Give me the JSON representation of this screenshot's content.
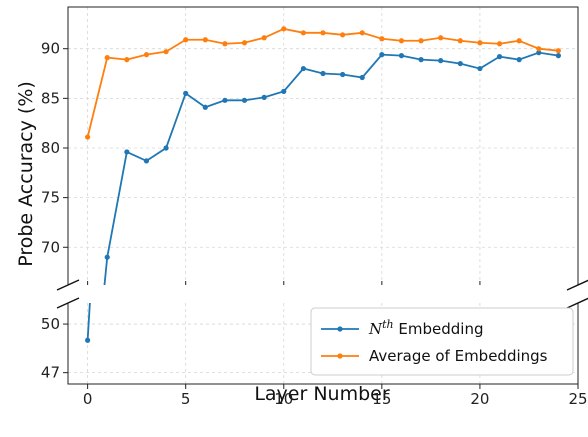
{
  "chart_data": {
    "type": "line",
    "xlabel": "Layer Number",
    "ylabel": "Probe Accuracy (%)",
    "xlim": [
      -1,
      25
    ],
    "xticks": [
      0,
      5,
      10,
      15,
      20,
      25
    ],
    "broken_axis": {
      "upper": {
        "ylim": [
          66.2,
          94.2
        ],
        "yticks": [
          70,
          75,
          80,
          85,
          90
        ]
      },
      "lower": {
        "ylim": [
          46.3,
          51.3
        ],
        "yticks": [
          47,
          50
        ]
      }
    },
    "grid": true,
    "legend_position": "lower-right",
    "x": [
      0,
      1,
      2,
      3,
      4,
      5,
      6,
      7,
      8,
      9,
      10,
      11,
      12,
      13,
      14,
      15,
      16,
      17,
      18,
      19,
      20,
      21,
      22,
      23,
      24
    ],
    "series": [
      {
        "name": "Nth Embedding",
        "name_base": "N",
        "name_sup": "th",
        "name_rest": " Embedding",
        "color": "#1f77b4",
        "values": [
          49.0,
          69.0,
          79.6,
          78.7,
          80.0,
          85.5,
          84.1,
          84.8,
          84.8,
          85.1,
          85.7,
          88.0,
          87.5,
          87.4,
          87.1,
          89.4,
          89.3,
          88.9,
          88.8,
          88.5,
          88.0,
          89.2,
          88.9,
          89.6,
          89.3
        ]
      },
      {
        "name": "Average of Embeddings",
        "color": "#ff7f0e",
        "values": [
          81.1,
          89.1,
          88.9,
          89.4,
          89.7,
          90.9,
          90.9,
          90.5,
          90.6,
          91.1,
          92.0,
          91.6,
          91.6,
          91.4,
          91.6,
          91.0,
          90.8,
          90.8,
          91.1,
          90.8,
          90.6,
          90.5,
          90.8,
          90.0,
          89.8
        ]
      }
    ]
  }
}
